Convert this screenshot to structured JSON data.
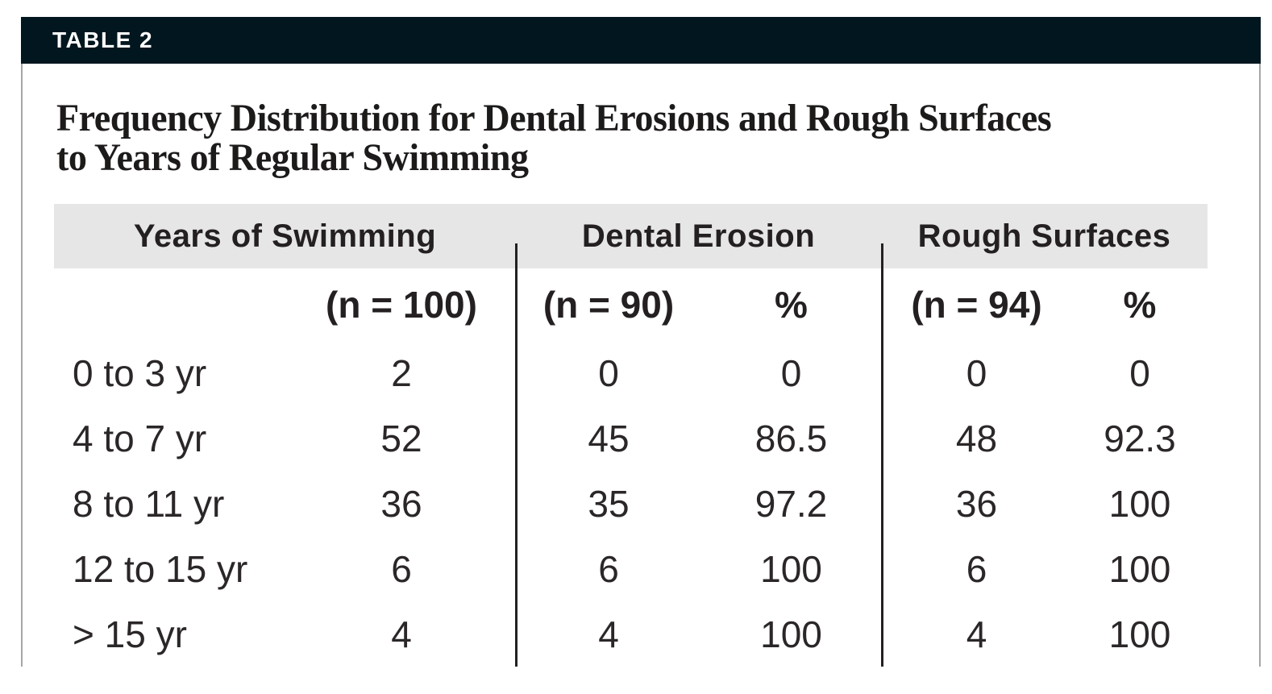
{
  "table_tag": "TABLE 2",
  "title": {
    "line1": "Frequency Distribution for Dental Erosions and Rough Surfaces",
    "line2": "to Years of Regular Swimming"
  },
  "table": {
    "group_headers": [
      "Years of Swimming",
      "Dental Erosion",
      "Rough Surfaces"
    ],
    "subheaders": [
      "(n = 100)",
      "(n = 90)",
      "%",
      "(n = 94)",
      "%"
    ],
    "rows": [
      {
        "label": "0 to 3 yr",
        "years_n": "2",
        "erosion_n": "0",
        "erosion_pct": "0",
        "rough_n": "0",
        "rough_pct": "0"
      },
      {
        "label": "4 to 7 yr",
        "years_n": "52",
        "erosion_n": "45",
        "erosion_pct": "86.5",
        "rough_n": "48",
        "rough_pct": "92.3"
      },
      {
        "label": "8 to 11 yr",
        "years_n": "36",
        "erosion_n": "35",
        "erosion_pct": "97.2",
        "rough_n": "36",
        "rough_pct": "100"
      },
      {
        "label": "12 to 15 yr",
        "years_n": "6",
        "erosion_n": "6",
        "erosion_pct": "100",
        "rough_n": "6",
        "rough_pct": "100"
      },
      {
        "label": "> 15 yr",
        "years_n": "4",
        "erosion_n": "4",
        "erosion_pct": "100",
        "rough_n": "4",
        "rough_pct": "100"
      }
    ]
  },
  "colors": {
    "header_bar_bg": "#02161f",
    "header_bar_text": "#ffffff",
    "header_band_bg": "#e6e6e7",
    "body_text": "#2b2728",
    "divider_rule": "#242021",
    "box_border": "#a6a6a6"
  }
}
